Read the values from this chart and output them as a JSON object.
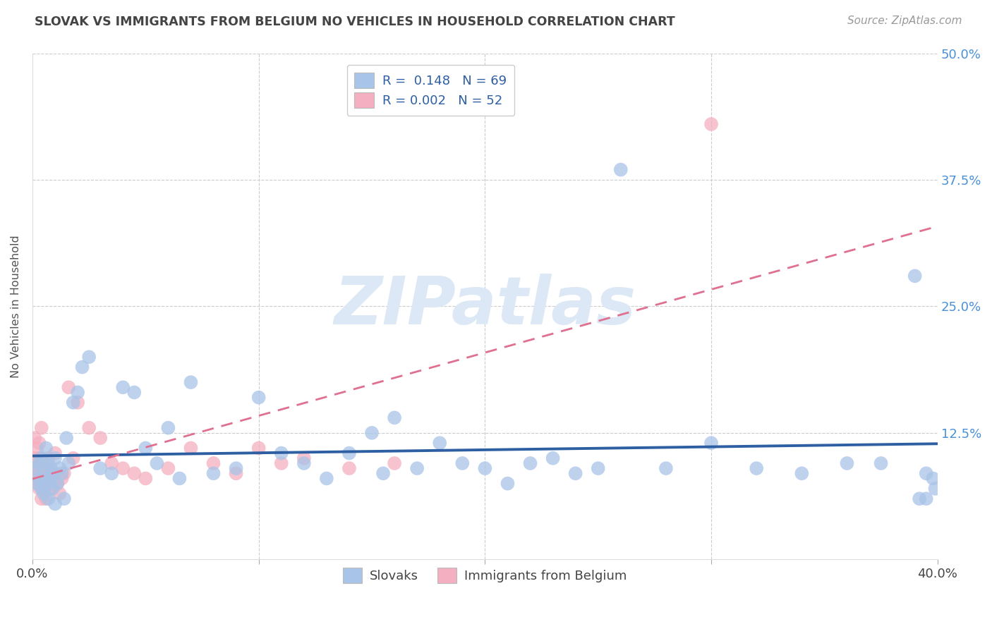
{
  "title": "SLOVAK VS IMMIGRANTS FROM BELGIUM NO VEHICLES IN HOUSEHOLD CORRELATION CHART",
  "source": "Source: ZipAtlas.com",
  "ylabel": "No Vehicles in Household",
  "watermark": "ZIPatlas",
  "xlim": [
    0.0,
    0.4
  ],
  "ylim": [
    0.0,
    0.5
  ],
  "blue_R": "0.148",
  "blue_N": "69",
  "pink_R": "0.002",
  "pink_N": "52",
  "blue_color": "#a8c4e8",
  "pink_color": "#f4afc0",
  "blue_line_color": "#2e5fa3",
  "pink_line_color": "#e07090",
  "legend_label_blue": "Slovaks",
  "legend_label_pink": "Immigrants from Belgium",
  "blue_scatter_x": [
    0.001,
    0.002,
    0.003,
    0.003,
    0.004,
    0.004,
    0.005,
    0.005,
    0.006,
    0.006,
    0.007,
    0.007,
    0.008,
    0.008,
    0.009,
    0.009,
    0.01,
    0.01,
    0.011,
    0.012,
    0.013,
    0.014,
    0.015,
    0.016,
    0.018,
    0.02,
    0.022,
    0.025,
    0.03,
    0.035,
    0.04,
    0.045,
    0.05,
    0.055,
    0.06,
    0.065,
    0.07,
    0.08,
    0.09,
    0.1,
    0.11,
    0.12,
    0.13,
    0.14,
    0.15,
    0.155,
    0.16,
    0.17,
    0.18,
    0.19,
    0.2,
    0.21,
    0.22,
    0.23,
    0.24,
    0.25,
    0.26,
    0.28,
    0.3,
    0.32,
    0.34,
    0.36,
    0.375,
    0.39,
    0.395,
    0.398,
    0.399,
    0.395,
    0.392
  ],
  "blue_scatter_y": [
    0.09,
    0.075,
    0.095,
    0.08,
    0.1,
    0.07,
    0.085,
    0.065,
    0.11,
    0.075,
    0.095,
    0.06,
    0.08,
    0.09,
    0.085,
    0.07,
    0.1,
    0.055,
    0.075,
    0.09,
    0.085,
    0.06,
    0.12,
    0.095,
    0.155,
    0.165,
    0.19,
    0.2,
    0.09,
    0.085,
    0.17,
    0.165,
    0.11,
    0.095,
    0.13,
    0.08,
    0.175,
    0.085,
    0.09,
    0.16,
    0.105,
    0.095,
    0.08,
    0.105,
    0.125,
    0.085,
    0.14,
    0.09,
    0.115,
    0.095,
    0.09,
    0.075,
    0.095,
    0.1,
    0.085,
    0.09,
    0.385,
    0.09,
    0.115,
    0.09,
    0.085,
    0.095,
    0.095,
    0.28,
    0.085,
    0.08,
    0.07,
    0.06,
    0.06
  ],
  "pink_scatter_x": [
    0.001,
    0.001,
    0.001,
    0.001,
    0.002,
    0.002,
    0.002,
    0.002,
    0.003,
    0.003,
    0.003,
    0.003,
    0.003,
    0.004,
    0.004,
    0.004,
    0.004,
    0.005,
    0.005,
    0.005,
    0.006,
    0.006,
    0.007,
    0.007,
    0.008,
    0.008,
    0.009,
    0.01,
    0.01,
    0.011,
    0.012,
    0.013,
    0.014,
    0.016,
    0.018,
    0.02,
    0.025,
    0.03,
    0.035,
    0.04,
    0.045,
    0.05,
    0.06,
    0.07,
    0.08,
    0.09,
    0.1,
    0.11,
    0.12,
    0.14,
    0.16,
    0.3
  ],
  "pink_scatter_y": [
    0.08,
    0.09,
    0.1,
    0.12,
    0.075,
    0.085,
    0.095,
    0.11,
    0.07,
    0.08,
    0.09,
    0.1,
    0.115,
    0.06,
    0.075,
    0.085,
    0.13,
    0.07,
    0.08,
    0.095,
    0.06,
    0.09,
    0.08,
    0.1,
    0.07,
    0.09,
    0.075,
    0.085,
    0.105,
    0.075,
    0.065,
    0.08,
    0.085,
    0.17,
    0.1,
    0.155,
    0.13,
    0.12,
    0.095,
    0.09,
    0.085,
    0.08,
    0.09,
    0.11,
    0.095,
    0.085,
    0.11,
    0.095,
    0.1,
    0.09,
    0.095,
    0.43
  ],
  "grid_color": "#cccccc",
  "background_color": "#ffffff",
  "title_color": "#444444",
  "axis_label_color": "#555555",
  "right_tick_color": "#4a90d9",
  "watermark_color": "#dce8f5",
  "watermark_fontsize": 68
}
